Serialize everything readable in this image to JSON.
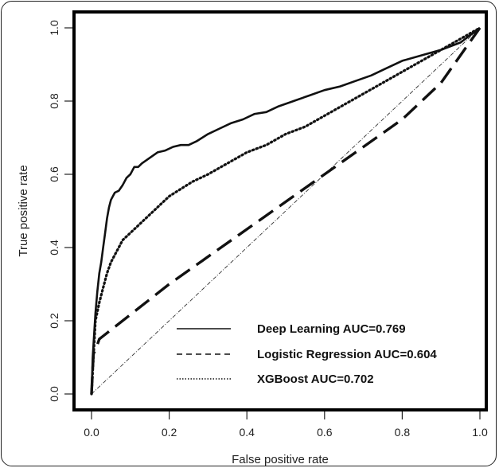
{
  "chart_data": {
    "type": "line",
    "xlabel": "False positive rate",
    "ylabel": "True positive rate",
    "xlim": [
      0,
      1
    ],
    "ylim": [
      0,
      1
    ],
    "x_ticks": [
      "0.0",
      "0.2",
      "0.4",
      "0.6",
      "0.8",
      "1.0"
    ],
    "y_ticks": [
      "0.0",
      "0.2",
      "0.4",
      "0.6",
      "0.8",
      "1.0"
    ],
    "grid": false,
    "legend_position": "bottom-right",
    "reference_line": {
      "x": [
        0,
        1
      ],
      "y": [
        0,
        1
      ],
      "style": "dash-dot"
    },
    "series": [
      {
        "name": "Deep Learning AUC=0.769",
        "style": "solid",
        "x": [
          0,
          0.003,
          0.006,
          0.01,
          0.015,
          0.02,
          0.025,
          0.03,
          0.035,
          0.04,
          0.045,
          0.05,
          0.055,
          0.06,
          0.07,
          0.08,
          0.09,
          0.1,
          0.11,
          0.12,
          0.13,
          0.15,
          0.17,
          0.19,
          0.21,
          0.23,
          0.25,
          0.27,
          0.3,
          0.33,
          0.36,
          0.39,
          0.42,
          0.45,
          0.48,
          0.52,
          0.56,
          0.6,
          0.64,
          0.68,
          0.72,
          0.76,
          0.8,
          0.85,
          0.9,
          0.95,
          1.0
        ],
        "y": [
          0,
          0.1,
          0.15,
          0.22,
          0.28,
          0.33,
          0.36,
          0.4,
          0.44,
          0.48,
          0.51,
          0.53,
          0.54,
          0.55,
          0.555,
          0.57,
          0.59,
          0.6,
          0.62,
          0.62,
          0.63,
          0.645,
          0.66,
          0.665,
          0.675,
          0.68,
          0.68,
          0.69,
          0.71,
          0.725,
          0.74,
          0.75,
          0.765,
          0.77,
          0.785,
          0.8,
          0.815,
          0.83,
          0.84,
          0.855,
          0.87,
          0.89,
          0.91,
          0.925,
          0.94,
          0.96,
          1.0
        ]
      },
      {
        "name": "Logistic Regression AUC=0.604",
        "style": "dashed",
        "x": [
          0,
          0.005,
          0.01,
          0.02,
          0.2,
          0.4,
          0.6,
          0.8,
          0.9,
          1.0
        ],
        "y": [
          0,
          0.11,
          0.12,
          0.15,
          0.3,
          0.45,
          0.6,
          0.75,
          0.85,
          1.0
        ],
        "note": "approximate"
      },
      {
        "name": "XGBoost AUC=0.702",
        "style": "dotted",
        "x": [
          0,
          0.005,
          0.01,
          0.02,
          0.03,
          0.04,
          0.05,
          0.06,
          0.07,
          0.08,
          0.1,
          0.12,
          0.14,
          0.16,
          0.18,
          0.2,
          0.23,
          0.26,
          0.3,
          0.35,
          0.4,
          0.45,
          0.5,
          0.55,
          0.6,
          0.65,
          0.7,
          0.75,
          0.8,
          0.85,
          0.9,
          0.95,
          1.0
        ],
        "y": [
          0,
          0.1,
          0.2,
          0.25,
          0.29,
          0.33,
          0.36,
          0.38,
          0.4,
          0.42,
          0.44,
          0.46,
          0.48,
          0.5,
          0.52,
          0.54,
          0.56,
          0.58,
          0.6,
          0.63,
          0.66,
          0.68,
          0.71,
          0.73,
          0.76,
          0.79,
          0.82,
          0.85,
          0.88,
          0.91,
          0.94,
          0.97,
          1.0
        ]
      }
    ]
  }
}
